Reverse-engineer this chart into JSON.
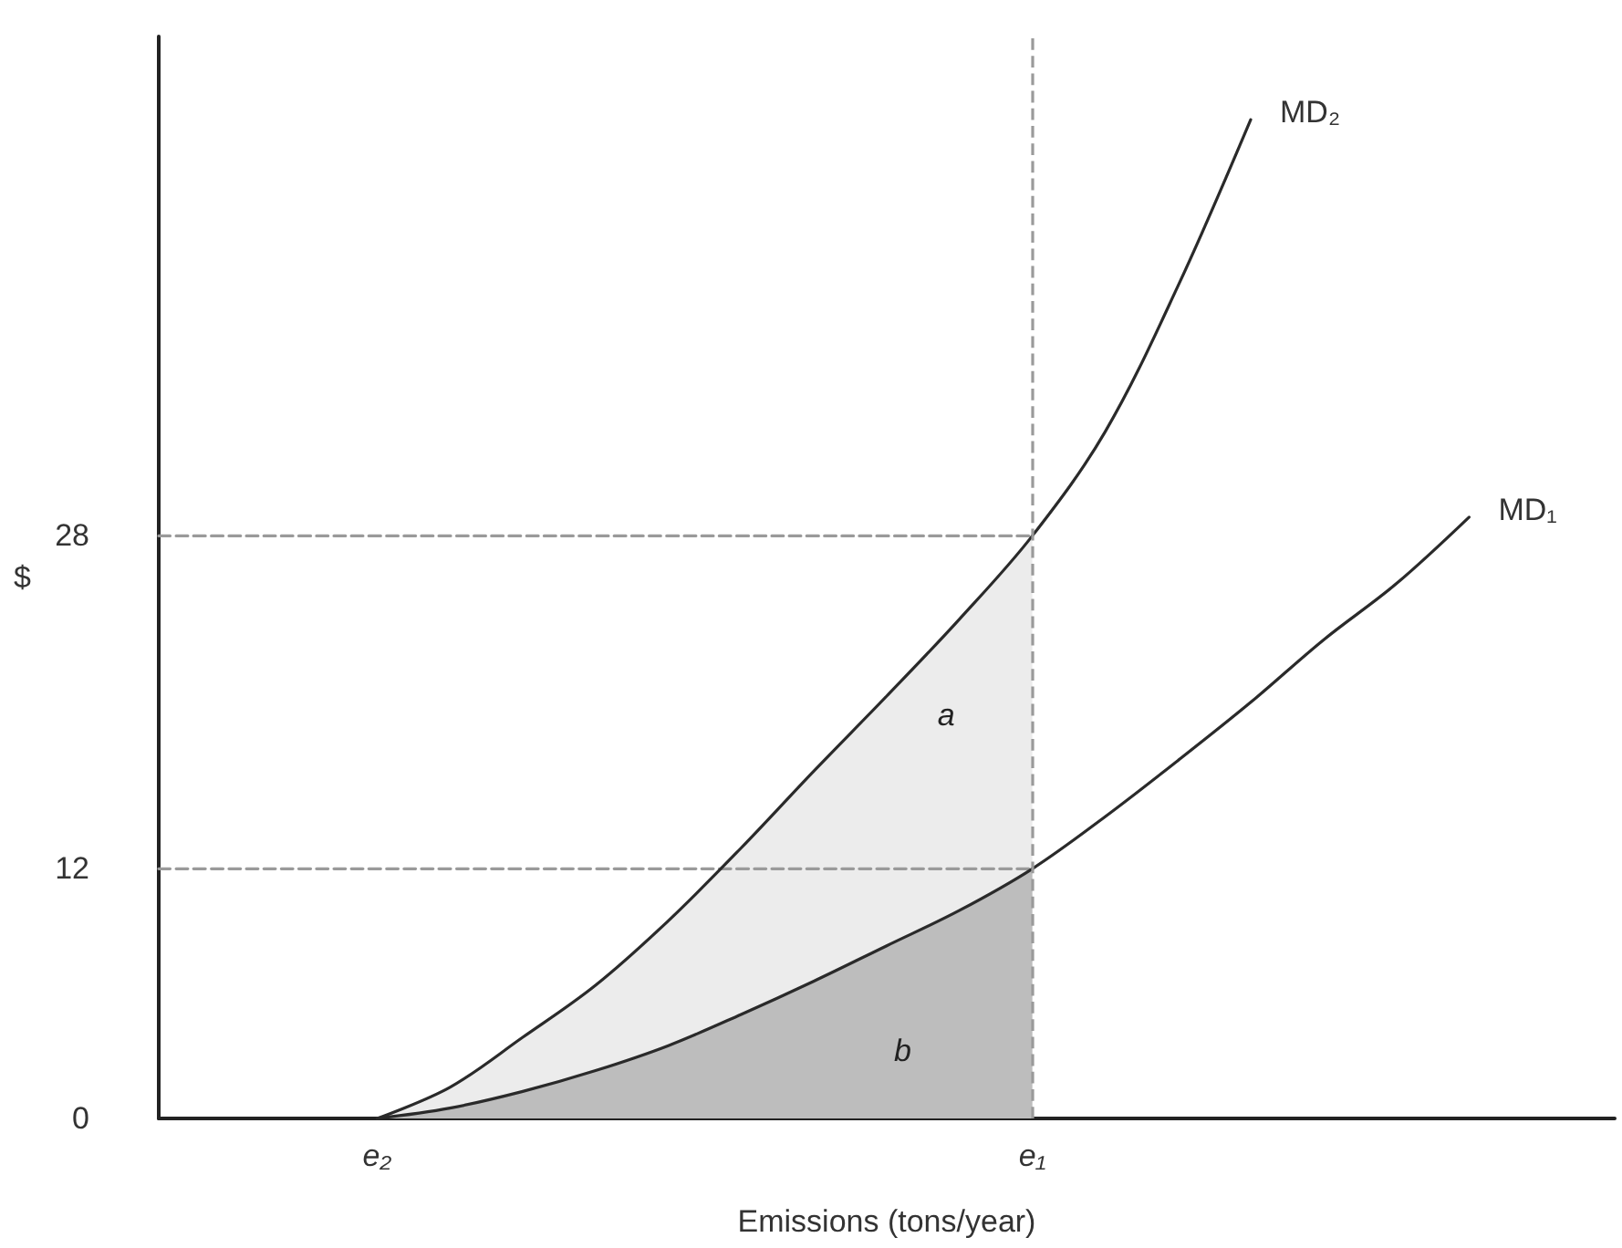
{
  "chart_data": {
    "type": "line",
    "xlabel": "Emissions (tons/year)",
    "ylabel": "$",
    "categories": [
      null,
      null,
      null,
      "e₂",
      null,
      null,
      null,
      null,
      null,
      null,
      null,
      null,
      "e₁",
      null,
      null,
      null,
      null,
      null,
      null,
      null,
      null
    ],
    "ylim": [
      0,
      52
    ],
    "yticks": [
      0,
      12,
      28
    ],
    "grid": false,
    "legend": false,
    "marker": "none",
    "series": [
      {
        "type": "area",
        "color": "#ececec",
        "values": [
          null,
          null,
          null,
          0,
          1.5,
          3.9,
          6.4,
          9.5,
          13,
          16.7,
          20.3,
          24,
          28,
          null,
          null,
          null,
          null,
          null,
          null,
          null,
          null
        ]
      },
      {
        "type": "area",
        "color": "#bdbdbd",
        "values": [
          null,
          null,
          null,
          0,
          0.5,
          1.3,
          2.3,
          3.5,
          5,
          6.6,
          8.3,
          10,
          12,
          null,
          null,
          null,
          null,
          null,
          null,
          null,
          null
        ]
      },
      {
        "color": "#9a9a9a",
        "line_style": "dashed",
        "values": [
          28,
          28,
          28,
          28,
          28,
          28,
          28,
          28,
          28,
          28,
          28,
          28,
          28,
          null,
          null,
          null,
          null,
          null,
          null,
          null,
          null
        ]
      },
      {
        "color": "#9a9a9a",
        "line_style": "dashed",
        "values": [
          12,
          12,
          12,
          12,
          12,
          12,
          12,
          12,
          12,
          12,
          12,
          12,
          12,
          null,
          null,
          null,
          null,
          null,
          null,
          null,
          null
        ]
      },
      {
        "name": "MD₂",
        "color": "#2a2a2a",
        "line_style": "solid",
        "values": [
          null,
          null,
          null,
          0,
          1.5,
          3.9,
          6.4,
          9.5,
          13,
          16.7,
          20.3,
          24,
          28,
          33,
          40,
          48,
          null,
          null,
          null,
          null,
          null
        ]
      },
      {
        "name": "MD₁",
        "color": "#2a2a2a",
        "line_style": "solid",
        "values": [
          null,
          null,
          null,
          0,
          0.5,
          1.3,
          2.3,
          3.5,
          5,
          6.6,
          8.3,
          10,
          12,
          14.5,
          17.2,
          20,
          23,
          25.7,
          28.9,
          null,
          null
        ]
      }
    ],
    "ref_lines": [
      {
        "axis": "x",
        "value": "e₁",
        "color": "#9a9a9a",
        "line_style": "dashed"
      }
    ],
    "annotations": [
      "a",
      "b"
    ]
  }
}
